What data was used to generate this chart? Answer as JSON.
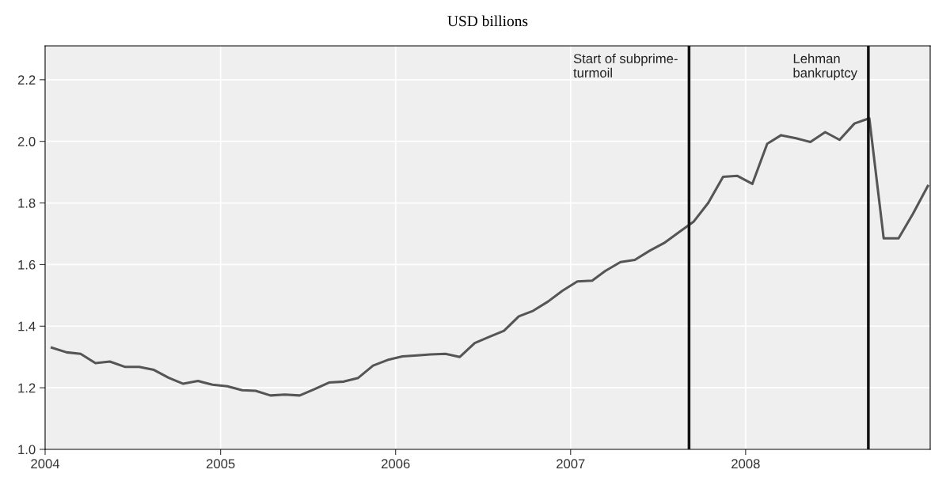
{
  "chart_data": {
    "type": "line",
    "title": "USD billions",
    "x": [
      "2004-01-15",
      "2004-02-15",
      "2004-03-15",
      "2004-04-15",
      "2004-05-15",
      "2004-06-15",
      "2004-07-15",
      "2004-08-15",
      "2004-09-15",
      "2004-10-15",
      "2004-11-15",
      "2004-12-15",
      "2005-01-15",
      "2005-02-15",
      "2005-03-15",
      "2005-04-15",
      "2005-05-15",
      "2005-06-15",
      "2005-07-15",
      "2005-08-15",
      "2005-09-15",
      "2005-10-15",
      "2005-11-15",
      "2005-12-15",
      "2006-01-15",
      "2006-02-15",
      "2006-03-15",
      "2006-04-15",
      "2006-05-15",
      "2006-06-15",
      "2006-07-15",
      "2006-08-15",
      "2006-09-15",
      "2006-10-15",
      "2006-11-15",
      "2006-12-15",
      "2007-01-15",
      "2007-02-15",
      "2007-03-15",
      "2007-04-15",
      "2007-05-15",
      "2007-06-15",
      "2007-07-15",
      "2007-08-15",
      "2007-09-15",
      "2007-10-15",
      "2007-11-15",
      "2007-12-15",
      "2008-01-15",
      "2008-02-15",
      "2008-03-15",
      "2008-04-15",
      "2008-05-15",
      "2008-06-15",
      "2008-07-15",
      "2008-08-15",
      "2008-09-15",
      "2008-10-15",
      "2008-11-15",
      "2008-12-15",
      "2009-01-15"
    ],
    "series": [
      {
        "color": "#555555",
        "values": [
          1.33,
          1.315,
          1.31,
          1.28,
          1.285,
          1.268,
          1.268,
          1.258,
          1.232,
          1.213,
          1.222,
          1.21,
          1.205,
          1.192,
          1.19,
          1.175,
          1.178,
          1.175,
          1.195,
          1.217,
          1.22,
          1.232,
          1.272,
          1.29,
          1.302,
          1.305,
          1.308,
          1.31,
          1.3,
          1.345,
          1.365,
          1.385,
          1.432,
          1.45,
          1.48,
          1.515,
          1.545,
          1.548,
          1.58,
          1.608,
          1.615,
          1.645,
          1.67,
          1.705,
          1.74,
          1.8,
          1.885,
          1.888,
          1.862,
          1.992,
          2.02,
          2.01,
          1.998,
          2.03,
          2.005,
          2.058,
          2.075,
          1.685,
          1.685,
          1.765,
          1.855
        ]
      }
    ],
    "xlim": [
      "2004-01-01",
      "2009-01-20"
    ],
    "xticks": [
      {
        "value": "2004-01-01",
        "label": "2004"
      },
      {
        "value": "2005-01-01",
        "label": "2005"
      },
      {
        "value": "2006-01-01",
        "label": "2006"
      },
      {
        "value": "2007-01-01",
        "label": "2007"
      },
      {
        "value": "2008-01-01",
        "label": "2008"
      }
    ],
    "ylim": [
      1.0,
      2.31
    ],
    "yticks": [
      {
        "value": 1.0,
        "label": "1.0"
      },
      {
        "value": 1.2,
        "label": "1.2"
      },
      {
        "value": 1.4,
        "label": "1.4"
      },
      {
        "value": 1.6,
        "label": "1.6"
      },
      {
        "value": 1.8,
        "label": "1.8"
      },
      {
        "value": 2.0,
        "label": "2.0"
      },
      {
        "value": 2.2,
        "label": "2.2"
      }
    ],
    "ref_lines": [
      {
        "axis": "x",
        "value": "2007-09-05",
        "label": "Start of subprime-\nturmoil",
        "color": "#111111"
      },
      {
        "axis": "x",
        "value": "2008-09-13",
        "label": "Lehman\nbankruptcy",
        "color": "#111111"
      }
    ],
    "grid": true,
    "marker": "none",
    "line_style": "solid"
  }
}
